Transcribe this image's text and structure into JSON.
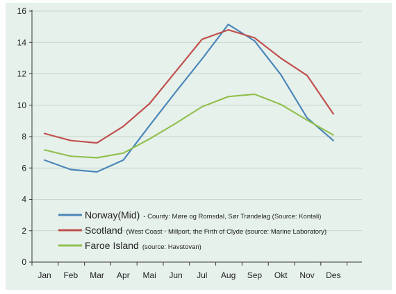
{
  "chart_data": {
    "type": "line",
    "title": "",
    "xlabel": "",
    "ylabel": "",
    "categories": [
      "Jan",
      "Feb",
      "Mar",
      "Apr",
      "Mai",
      "Jun",
      "Jul",
      "Aug",
      "Sep",
      "Okt",
      "Nov",
      "Des"
    ],
    "ylim": [
      0,
      16
    ],
    "yticks": [
      "0",
      "2",
      "4",
      "6",
      "8",
      "10",
      "12",
      "14",
      "16"
    ],
    "grid": "horizontal",
    "legend_position": "bottom-left",
    "series": [
      {
        "name": "Norway(Mid)",
        "source": "- County: Møre og Romsdal, Sør Trøndelag (Source: Kontali)",
        "color": "#4a86b8",
        "values": [
          6.5,
          5.9,
          5.75,
          6.5,
          8.7,
          10.85,
          12.95,
          15.15,
          14.1,
          11.95,
          9.2,
          7.75
        ]
      },
      {
        "name": "Scotland",
        "source": "(West Coast - Millport, the Firth of Clyde (source: Marine Laboratory)",
        "color": "#c0504d",
        "values": [
          8.2,
          7.75,
          7.6,
          8.65,
          10.1,
          12.15,
          14.2,
          14.8,
          14.3,
          13.0,
          11.9,
          9.45
        ]
      },
      {
        "name": "Faroe Island",
        "source": "(source: Havstovan)",
        "color": "#92c050",
        "values": [
          7.15,
          6.75,
          6.65,
          6.95,
          7.85,
          8.85,
          9.9,
          10.55,
          10.7,
          10.05,
          9.05,
          8.1
        ]
      }
    ]
  }
}
